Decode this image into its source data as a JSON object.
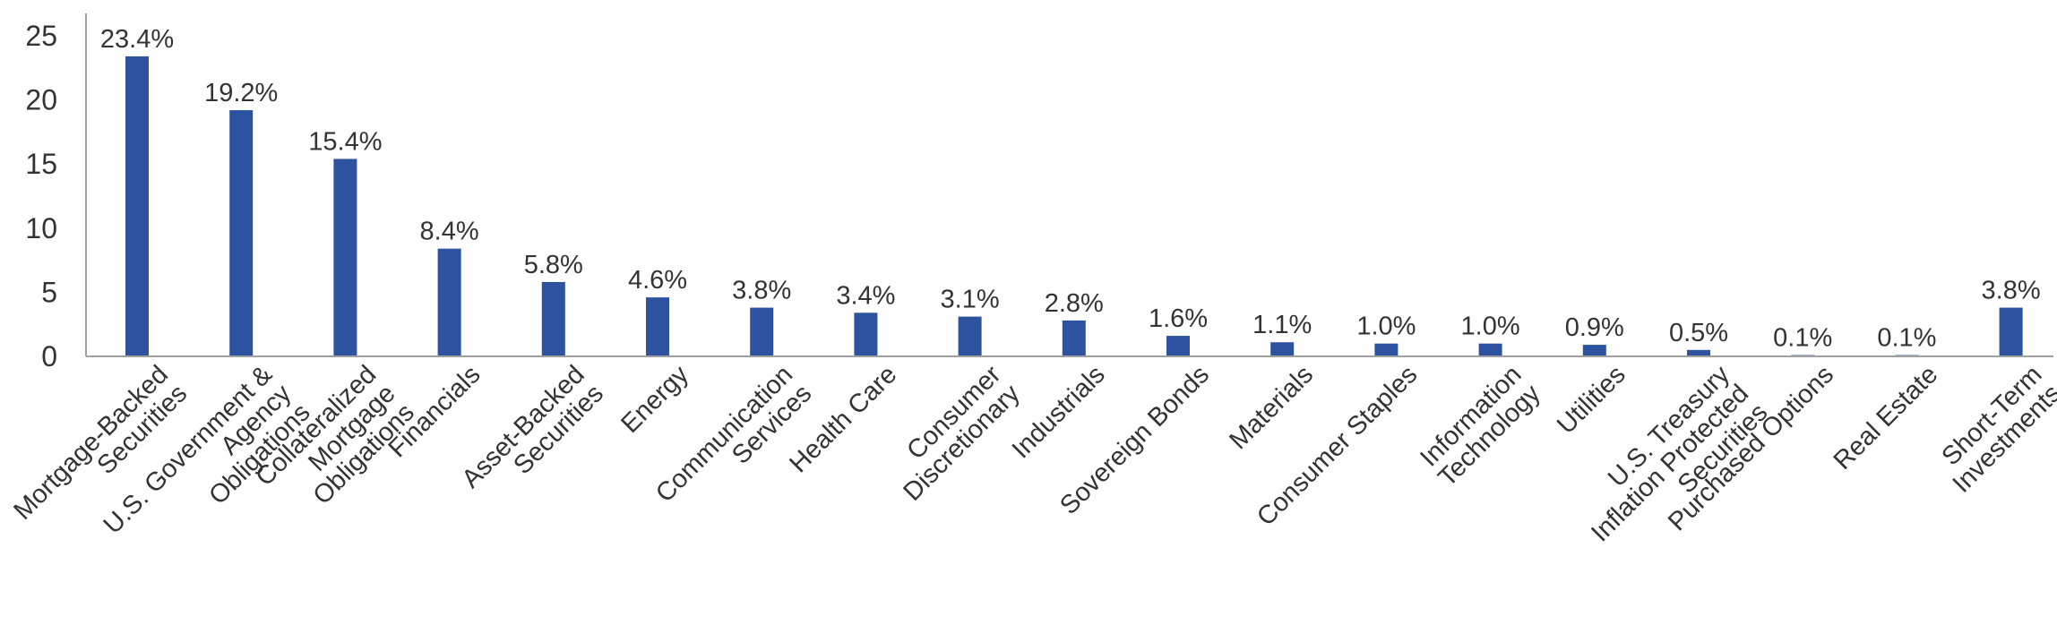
{
  "chart_data": {
    "type": "bar",
    "title": "",
    "xlabel": "",
    "ylabel": "",
    "ylim": [
      0,
      25
    ],
    "yticks": [
      0,
      5,
      10,
      15,
      20,
      25
    ],
    "grid": false,
    "bar_color": "#2c52a0",
    "axis_color": "#a0a0a0",
    "categories": [
      [
        "Mortgage-Backed",
        "Securities"
      ],
      [
        "U.S. Government &",
        "Agency",
        "Obligations"
      ],
      [
        "Collateralized",
        "Mortgage",
        "Obligations"
      ],
      [
        "Financials"
      ],
      [
        "Asset-Backed",
        "Securities"
      ],
      [
        "Energy"
      ],
      [
        "Communication",
        "Services"
      ],
      [
        "Health Care"
      ],
      [
        "Consumer",
        "Discretionary"
      ],
      [
        "Industrials"
      ],
      [
        "Sovereign Bonds"
      ],
      [
        "Materials"
      ],
      [
        "Consumer Staples"
      ],
      [
        "Information",
        "Technology"
      ],
      [
        "Utilities"
      ],
      [
        "U.S. Treasury",
        "Inflation Protected",
        "Securities"
      ],
      [
        "Purchased Options"
      ],
      [
        "Real Estate"
      ],
      [
        "Short-Term",
        "Investments"
      ]
    ],
    "values": [
      23.4,
      19.2,
      15.4,
      8.4,
      5.8,
      4.6,
      3.8,
      3.4,
      3.1,
      2.8,
      1.6,
      1.1,
      1.0,
      1.0,
      0.9,
      0.5,
      0.1,
      0.1,
      3.8
    ],
    "data_labels": [
      "23.4%",
      "19.2%",
      "15.4%",
      "8.4%",
      "5.8%",
      "4.6%",
      "3.8%",
      "3.4%",
      "3.1%",
      "2.8%",
      "1.6%",
      "1.1%",
      "1.0%",
      "1.0%",
      "0.9%",
      "0.5%",
      "0.1%",
      "0.1%",
      "3.8%"
    ]
  }
}
